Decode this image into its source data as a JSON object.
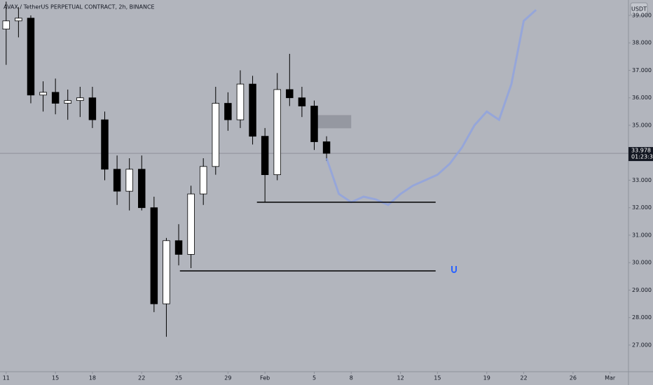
{
  "chart_data": {
    "type": "candlestick",
    "title": "AVAX / TetherUS PERPETUAL CONTRACT, 2h, BINANCE",
    "currency_button": "USDT",
    "x": [
      0,
      1,
      2,
      3,
      4,
      5,
      6,
      7,
      8,
      9,
      10,
      11,
      12,
      13,
      14,
      15,
      16,
      17,
      18,
      19,
      20,
      21,
      22,
      23,
      24,
      25,
      26
    ],
    "open": [
      38.5,
      38.8,
      38.9,
      36.1,
      36.2,
      35.8,
      35.9,
      36.0,
      35.2,
      33.4,
      32.6,
      33.4,
      32.0,
      28.5,
      30.8,
      30.3,
      32.5,
      33.5,
      35.8,
      35.2,
      36.5,
      34.6,
      33.2,
      36.3,
      36.0,
      35.7,
      34.4
    ],
    "high": [
      39.5,
      39.3,
      39.0,
      36.6,
      36.7,
      36.3,
      36.4,
      36.4,
      35.5,
      33.9,
      33.8,
      33.9,
      32.4,
      30.9,
      31.4,
      32.8,
      33.8,
      36.4,
      36.2,
      37.0,
      36.8,
      34.9,
      36.9,
      37.6,
      36.4,
      35.9,
      34.6
    ],
    "low": [
      37.2,
      38.2,
      35.8,
      35.5,
      35.4,
      35.2,
      35.3,
      34.9,
      33.0,
      32.1,
      31.9,
      31.9,
      28.2,
      27.3,
      29.9,
      29.8,
      32.1,
      33.2,
      34.8,
      34.9,
      34.3,
      32.2,
      33.0,
      35.7,
      35.3,
      34.1,
      33.7
    ],
    "close": [
      38.8,
      38.9,
      36.1,
      36.2,
      35.8,
      35.9,
      36.0,
      35.2,
      33.4,
      32.6,
      33.4,
      32.0,
      28.5,
      30.8,
      30.3,
      32.5,
      33.5,
      35.8,
      35.2,
      36.5,
      34.6,
      33.2,
      36.3,
      36.0,
      35.7,
      34.4,
      33.978
    ],
    "candle_up_color": "#ffffff",
    "candle_down_color": "#000000",
    "projection": {
      "color": "#8fa3e0",
      "x": [
        26,
        27,
        28,
        29,
        30,
        31,
        32,
        33,
        34,
        35,
        36,
        37,
        38,
        39,
        40,
        41,
        42,
        43
      ],
      "values": [
        33.8,
        32.5,
        32.2,
        32.4,
        32.3,
        32.1,
        32.5,
        32.8,
        33.0,
        33.2,
        33.6,
        34.2,
        35.0,
        35.5,
        35.2,
        36.5,
        38.8,
        39.2
      ]
    },
    "levels": [
      {
        "value": 32.2,
        "x": [
          20.35,
          34.85
        ]
      },
      {
        "value": 29.7,
        "x": [
          14.1,
          34.85
        ]
      }
    ],
    "zone": {
      "values": [
        34.89,
        35.37
      ],
      "x": [
        24.9,
        28.0
      ]
    },
    "last_price": {
      "value": 33.978,
      "label": "33.978",
      "countdown": "01:23:37"
    },
    "xlim": [
      -0.5,
      50.5
    ],
    "ylim": [
      26.03,
      39.56
    ],
    "xticks": [
      {
        "value": 0,
        "label": "11"
      },
      {
        "value": 4,
        "label": "15"
      },
      {
        "value": 7,
        "label": "18"
      },
      {
        "value": 11,
        "label": "22"
      },
      {
        "value": 14,
        "label": "25"
      },
      {
        "value": 18,
        "label": "29"
      },
      {
        "value": 21,
        "label": "Feb"
      },
      {
        "value": 25,
        "label": "5"
      },
      {
        "value": 28,
        "label": "8"
      },
      {
        "value": 32,
        "label": "12"
      },
      {
        "value": 35,
        "label": "15"
      },
      {
        "value": 39,
        "label": "19"
      },
      {
        "value": 42,
        "label": "22"
      },
      {
        "value": 46,
        "label": "26"
      },
      {
        "value": 49,
        "label": "Mar"
      }
    ],
    "yticks": [
      {
        "value": 27,
        "label": "27.000"
      },
      {
        "value": 28,
        "label": "28.000"
      },
      {
        "value": 29,
        "label": "29.000"
      },
      {
        "value": 30,
        "label": "30.000"
      },
      {
        "value": 31,
        "label": "31.000"
      },
      {
        "value": 32,
        "label": "32.000"
      },
      {
        "value": 33,
        "label": "33.000"
      },
      {
        "value": 34,
        "label": "34.000"
      },
      {
        "value": 35,
        "label": "35.000"
      },
      {
        "value": 36,
        "label": "36.000"
      },
      {
        "value": 37,
        "label": "37.000"
      },
      {
        "value": 38,
        "label": "38.000"
      },
      {
        "value": 39,
        "label": "39.000"
      }
    ]
  }
}
